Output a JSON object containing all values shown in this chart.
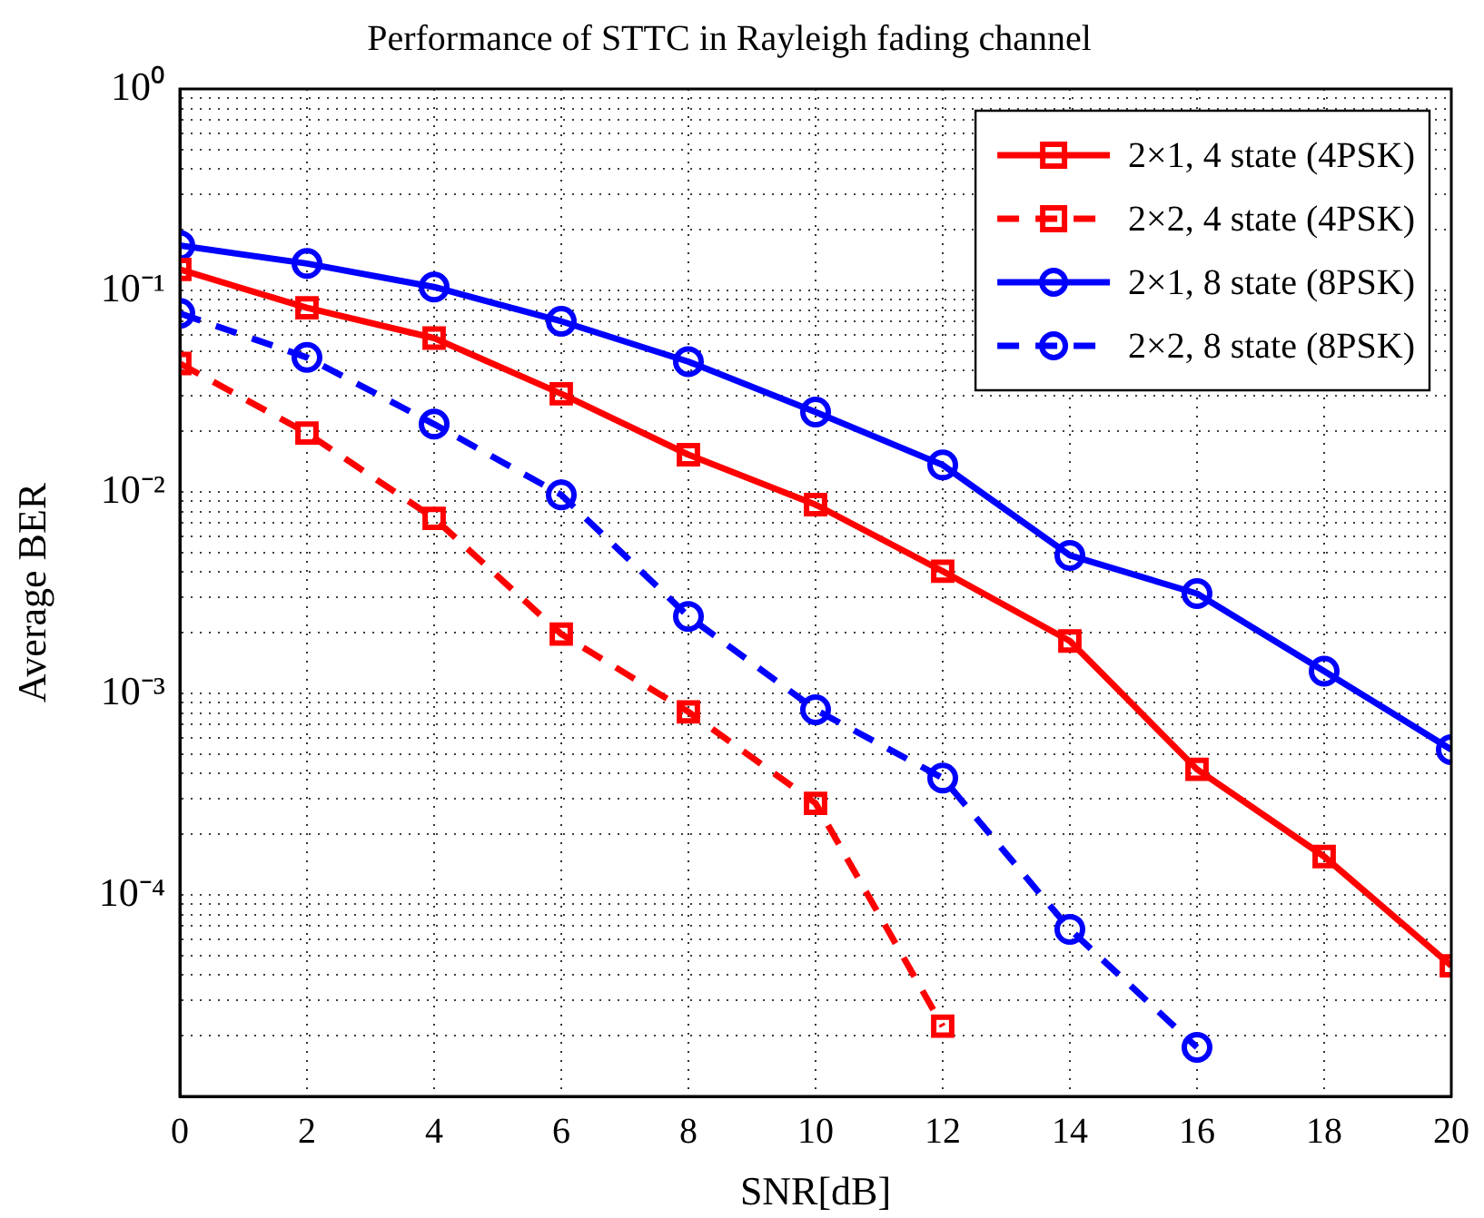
{
  "chart_data": {
    "type": "line",
    "title": "Performance of STTC in Rayleigh fading channel",
    "xlabel": "SNR[dB]",
    "ylabel": "Average BER",
    "x": [
      0,
      2,
      4,
      6,
      8,
      10,
      12,
      14,
      16,
      18,
      20
    ],
    "series": [
      {
        "name": "2×1, 4 state (4PSK)",
        "color": "#ff0000",
        "marker": "square",
        "line_style": "solid",
        "values": [
          0.127,
          0.082,
          0.058,
          0.0307,
          0.0153,
          0.00865,
          0.00404,
          0.00182,
          0.00042,
          0.000155,
          4.45e-05
        ]
      },
      {
        "name": "2×2, 4 state (4PSK)",
        "color": "#ff0000",
        "marker": "square",
        "line_style": "dashed",
        "values": [
          0.0434,
          0.0196,
          0.0074,
          0.00197,
          0.00081,
          0.000285,
          2.23e-05,
          null,
          null,
          null,
          null
        ]
      },
      {
        "name": "2×1, 8 state (8PSK)",
        "color": "#0000ff",
        "marker": "circle",
        "line_style": "solid",
        "values": [
          0.167,
          0.136,
          0.104,
          0.0703,
          0.0443,
          0.0249,
          0.0136,
          0.00484,
          0.00313,
          0.00129,
          0.000526
        ]
      },
      {
        "name": "2×2, 8 state (8PSK)",
        "color": "#0000ff",
        "marker": "circle",
        "line_style": "dashed",
        "values": [
          0.0769,
          0.0465,
          0.0217,
          0.00967,
          0.00241,
          0.00083,
          0.00038,
          6.75e-05,
          1.75e-05,
          null,
          null
        ]
      }
    ],
    "log": "y",
    "xlim": [
      0,
      20
    ],
    "xticks": [
      0,
      2,
      4,
      6,
      8,
      10,
      12,
      14,
      16,
      18,
      20
    ],
    "ylim": [
      1e-05,
      1
    ],
    "yticks": [
      {
        "value": 1e-05,
        "label": null
      },
      {
        "value": 0.0001,
        "label": "10⁻⁴"
      },
      {
        "value": 0.001,
        "label": "10⁻³"
      },
      {
        "value": 0.01,
        "label": "10⁻²"
      },
      {
        "value": 0.1,
        "label": "10⁻¹"
      },
      {
        "value": 1,
        "label": "10⁰"
      }
    ],
    "grid": true,
    "legend": "top right"
  }
}
